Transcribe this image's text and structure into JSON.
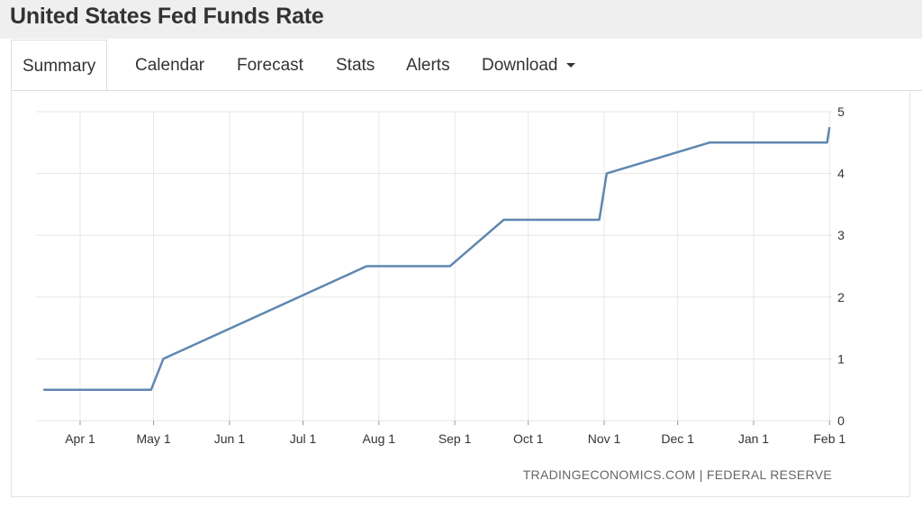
{
  "page": {
    "title": "United States Fed Funds Rate"
  },
  "tabs": [
    {
      "label": "Summary",
      "active": true
    },
    {
      "label": "Calendar"
    },
    {
      "label": "Forecast"
    },
    {
      "label": "Stats"
    },
    {
      "label": "Alerts"
    },
    {
      "label": "Download",
      "has_dropdown": true
    }
  ],
  "source": "TRADINGECONOMICS.COM | FEDERAL RESERVE",
  "colors": {
    "line": "#5f87b0",
    "grid": "#e6e6e6",
    "text": "#333333"
  },
  "chart_data": {
    "type": "line",
    "title": "United States Fed Funds Rate",
    "xlabel": "",
    "ylabel": "",
    "x_ticks": [
      "Apr 1",
      "May 1",
      "Jun 1",
      "Jul 1",
      "Aug 1",
      "Sep 1",
      "Oct 1",
      "Nov 1",
      "Dec 1",
      "Jan 1",
      "Feb 1"
    ],
    "y_ticks": [
      0,
      1,
      2,
      3,
      4,
      5
    ],
    "ylim": [
      0,
      5
    ],
    "grid": true,
    "y_axis_position": "right",
    "series": [
      {
        "x": [
          "2022-03-17",
          "2022-04-30",
          "2022-05-05",
          "2022-07-27",
          "2022-08-30",
          "2022-09-21",
          "2022-10-30",
          "2022-11-02",
          "2022-12-14",
          "2023-01-31",
          "2023-02-01"
        ],
        "values": [
          0.5,
          0.5,
          1.0,
          2.5,
          2.5,
          3.25,
          3.25,
          4.0,
          4.5,
          4.5,
          4.75
        ]
      }
    ]
  }
}
